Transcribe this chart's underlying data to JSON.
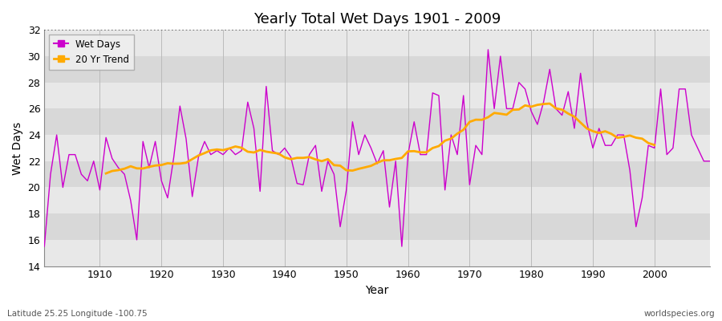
{
  "title": "Yearly Total Wet Days 1901 - 2009",
  "xlabel": "Year",
  "ylabel": "Wet Days",
  "subtitle": "Latitude 25.25 Longitude -100.75",
  "watermark": "worldspecies.org",
  "wet_days_color": "#cc00cc",
  "trend_color": "#ffaa00",
  "plot_bg_color": "#dcdcdc",
  "fig_bg_color": "#ffffff",
  "ylim": [
    14,
    32
  ],
  "xlim": [
    1901,
    2009
  ],
  "years": [
    1901,
    1902,
    1903,
    1904,
    1905,
    1906,
    1907,
    1908,
    1909,
    1910,
    1911,
    1912,
    1913,
    1914,
    1915,
    1916,
    1917,
    1918,
    1919,
    1920,
    1921,
    1922,
    1923,
    1924,
    1925,
    1926,
    1927,
    1928,
    1929,
    1930,
    1931,
    1932,
    1933,
    1934,
    1935,
    1936,
    1937,
    1938,
    1939,
    1940,
    1941,
    1942,
    1943,
    1944,
    1945,
    1946,
    1947,
    1948,
    1949,
    1950,
    1951,
    1952,
    1953,
    1954,
    1955,
    1956,
    1957,
    1958,
    1959,
    1960,
    1961,
    1962,
    1963,
    1964,
    1965,
    1966,
    1967,
    1968,
    1969,
    1970,
    1971,
    1972,
    1973,
    1974,
    1975,
    1976,
    1977,
    1978,
    1979,
    1980,
    1981,
    1982,
    1983,
    1984,
    1985,
    1986,
    1987,
    1988,
    1989,
    1990,
    1991,
    1992,
    1993,
    1994,
    1995,
    1996,
    1997,
    1998,
    1999,
    2000,
    2001,
    2002,
    2003,
    2004,
    2005,
    2006,
    2007,
    2008,
    2009
  ],
  "wet_days": [
    15.5,
    21.0,
    24.0,
    20.0,
    22.5,
    22.5,
    21.0,
    20.5,
    22.0,
    19.8,
    23.8,
    22.2,
    21.5,
    21.0,
    19.0,
    16.0,
    23.5,
    21.5,
    23.5,
    20.5,
    19.2,
    22.3,
    26.2,
    23.7,
    19.3,
    22.3,
    23.5,
    22.5,
    22.8,
    22.5,
    23.0,
    22.5,
    22.8,
    26.5,
    24.5,
    19.7,
    27.7,
    22.8,
    22.5,
    23.0,
    22.3,
    20.3,
    20.2,
    22.5,
    23.2,
    19.7,
    22.0,
    21.0,
    17.0,
    19.8,
    25.0,
    22.5,
    24.0,
    23.0,
    21.8,
    22.8,
    18.5,
    22.0,
    15.5,
    22.5,
    25.0,
    22.5,
    22.5,
    27.2,
    27.0,
    19.8,
    24.0,
    22.5,
    27.0,
    20.2,
    23.2,
    22.5,
    30.5,
    26.0,
    30.0,
    26.0,
    26.0,
    28.0,
    27.5,
    25.8,
    24.8,
    26.5,
    29.0,
    26.0,
    25.5,
    27.3,
    24.5,
    28.7,
    25.0,
    23.0,
    24.5,
    23.2,
    23.2,
    24.0,
    24.0,
    21.3,
    17.0,
    19.2,
    23.2,
    23.0,
    27.5,
    22.5,
    23.0,
    27.5,
    27.5,
    24.0,
    23.0,
    22.0,
    22.0
  ],
  "band_colors": [
    "#e8e8e8",
    "#d8d8d8"
  ],
  "hline_y": 32,
  "hline_style": "dotted",
  "legend_wet_label": "Wet Days",
  "legend_trend_label": "20 Yr Trend"
}
